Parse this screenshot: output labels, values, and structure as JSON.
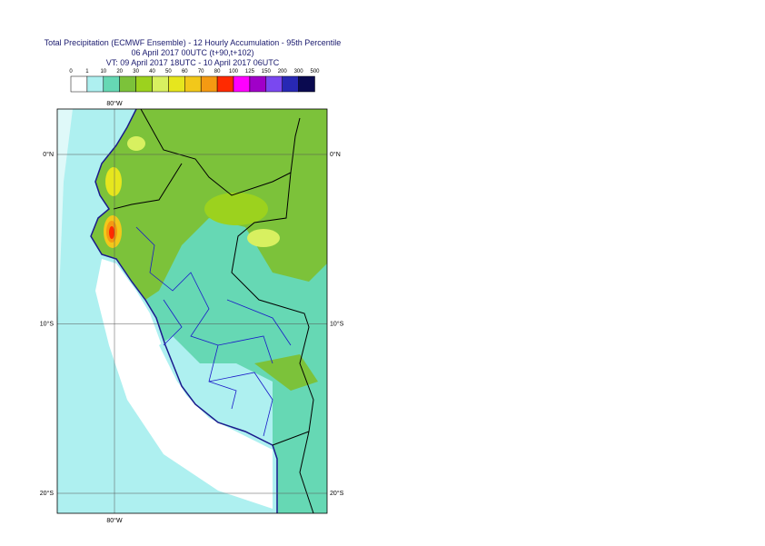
{
  "header": {
    "title_lines": [
      "Total Precipitation (ECMWF Ensemble) - 12 Hourly Accumulation - 95th Percentile",
      "06 April 2017 00UTC (t+90,t+102)",
      "VT: 09 April 2017 18UTC - 10 April 2017 06UTC"
    ]
  },
  "legend": {
    "boundaries": [
      0,
      1,
      10,
      20,
      30,
      40,
      50,
      60,
      70,
      80,
      100,
      125,
      150,
      200,
      300,
      500
    ],
    "colors": [
      "#ffffff",
      "#aef0f0",
      "#66d8b4",
      "#7cc23a",
      "#9cd21e",
      "#d8f060",
      "#e6e61e",
      "#f2c81a",
      "#f59a12",
      "#ff2a00",
      "#ff00ff",
      "#a000c8",
      "#7a48f0",
      "#2828b4",
      "#0a0a50"
    ]
  },
  "map": {
    "lat_lines": [
      {
        "value": 0,
        "label": "0°N"
      },
      {
        "value": -10,
        "label": "10°S"
      },
      {
        "value": -20,
        "label": "20°S"
      }
    ],
    "lon_lines": [
      {
        "value": -80,
        "label": "80°W"
      }
    ]
  }
}
